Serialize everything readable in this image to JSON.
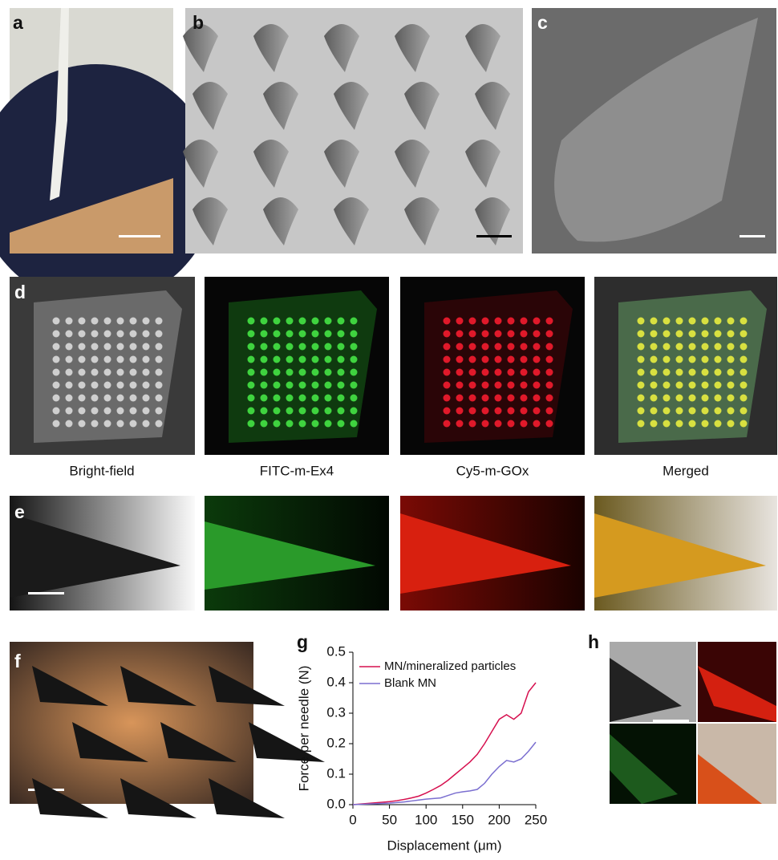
{
  "panel_labels": [
    "a",
    "b",
    "c",
    "d",
    "e",
    "f",
    "g",
    "h"
  ],
  "channel_labels": [
    "Bright-field",
    "FITC-m-Ex4",
    "Cy5-m-GOx",
    "Merged"
  ],
  "chart_data": {
    "type": "line",
    "x_label": "Displacement (μm)",
    "y_label": "Force per needle (N)",
    "x": [
      0,
      10,
      20,
      30,
      40,
      50,
      60,
      70,
      80,
      90,
      100,
      110,
      120,
      130,
      140,
      150,
      160,
      170,
      180,
      190,
      200,
      210,
      220,
      230,
      240,
      250
    ],
    "series": [
      {
        "name": "MN/mineralized particles",
        "color": "#d6104f",
        "values": [
          0,
          0.002,
          0.004,
          0.006,
          0.008,
          0.01,
          0.013,
          0.017,
          0.022,
          0.028,
          0.038,
          0.05,
          0.063,
          0.08,
          0.1,
          0.12,
          0.14,
          0.165,
          0.2,
          0.24,
          0.28,
          0.295,
          0.28,
          0.3,
          0.37,
          0.4
        ]
      },
      {
        "name": "Blank MN",
        "color": "#7b6fd0",
        "values": [
          0,
          0.001,
          0.002,
          0.003,
          0.004,
          0.005,
          0.007,
          0.009,
          0.012,
          0.015,
          0.018,
          0.02,
          0.022,
          0.03,
          0.038,
          0.042,
          0.045,
          0.05,
          0.07,
          0.1,
          0.125,
          0.145,
          0.14,
          0.15,
          0.175,
          0.205
        ]
      }
    ],
    "xlim": [
      0,
      250
    ],
    "xticks": [
      0,
      50,
      100,
      150,
      200,
      250
    ],
    "ylim": [
      0,
      0.5
    ],
    "yticks": [
      {
        "value": 0,
        "label": "0.0"
      },
      0.1,
      0.2,
      0.3,
      0.4,
      0.5
    ],
    "legend": "upper-left"
  }
}
